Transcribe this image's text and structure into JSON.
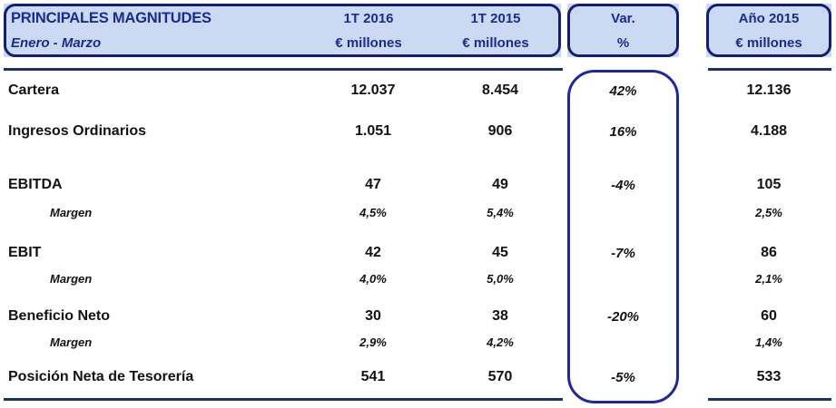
{
  "header": {
    "title": "PRINCIPALES MAGNITUDES",
    "subtitle": "Enero - Marzo",
    "columns": [
      {
        "line1": "1T 2016",
        "line2": "€ millones"
      },
      {
        "line1": "1T 2015",
        "line2": "€ millones"
      },
      {
        "line1": "Var.",
        "line2": "%"
      },
      {
        "line1": "Año 2015",
        "line2": "€ millones"
      }
    ]
  },
  "rows": [
    {
      "label": "Cartera",
      "q1_2016": "12.037",
      "q1_2015": "8.454",
      "var_pct": "42%",
      "year_2015": "12.136"
    },
    {
      "label": "Ingresos Ordinarios",
      "q1_2016": "1.051",
      "q1_2015": "906",
      "var_pct": "16%",
      "year_2015": "4.188"
    },
    {
      "label": "EBITDA",
      "q1_2016": "47",
      "q1_2015": "49",
      "var_pct": "-4%",
      "year_2015": "105"
    },
    {
      "label": "Margen",
      "q1_2016": "4,5%",
      "q1_2015": "5,4%",
      "var_pct": "",
      "year_2015": "2,5%"
    },
    {
      "label": "EBIT",
      "q1_2016": "42",
      "q1_2015": "45",
      "var_pct": "-7%",
      "year_2015": "86"
    },
    {
      "label": "Margen",
      "q1_2016": "4,0%",
      "q1_2015": "5,0%",
      "var_pct": "",
      "year_2015": "2,1%"
    },
    {
      "label": "Beneficio Neto",
      "q1_2016": "30",
      "q1_2015": "38",
      "var_pct": "-20%",
      "year_2015": "60"
    },
    {
      "label": "Margen",
      "q1_2016": "2,9%",
      "q1_2015": "4,2%",
      "var_pct": "",
      "year_2015": "1,4%"
    },
    {
      "label": "Posición Neta de Tesorería",
      "q1_2016": "541",
      "q1_2015": "570",
      "var_pct": "-5%",
      "year_2015": "533"
    }
  ],
  "colors": {
    "header_fill": "#CBDAF2",
    "header_border": "#121D78",
    "header_text": "#1A2A90",
    "rule": "#17355E",
    "var_border": "#1E27A0",
    "body_text": "#121212"
  }
}
